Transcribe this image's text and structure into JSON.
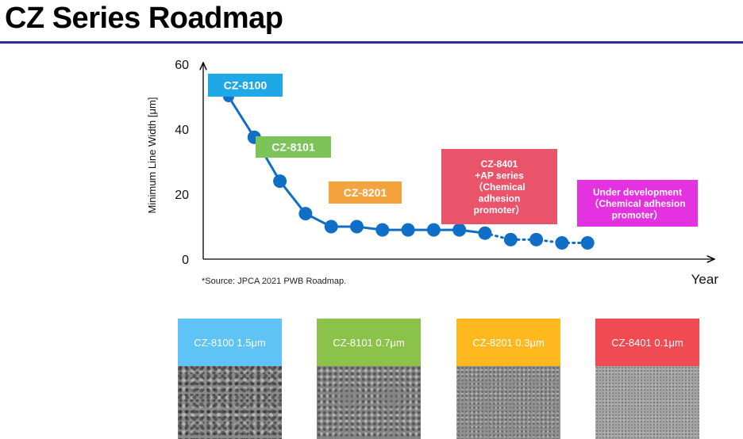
{
  "page_title": "CZ Series Roadmap",
  "chart_data": {
    "type": "line",
    "ylabel": "Minimum Line Width [μm]",
    "xlabel": "Year",
    "ylim": [
      0,
      60
    ],
    "yticks": [
      0,
      20,
      40,
      60
    ],
    "grid": false,
    "series": [
      {
        "style": "solid",
        "values": [
          50,
          37.5,
          24,
          14,
          10,
          10,
          9,
          9,
          9,
          9,
          8
        ]
      },
      {
        "style": "dotted",
        "values": [
          8,
          6,
          6,
          5,
          5
        ]
      }
    ],
    "annotations": [
      {
        "text": "CZ-8100",
        "color": "#1fa8e6"
      },
      {
        "text": "CZ-8101",
        "color": "#7cc35a"
      },
      {
        "text": "CZ-8201",
        "color": "#f5a33d"
      },
      {
        "lines": [
          "CZ-8401",
          "+AP series",
          "（Chemical",
          "adhesion",
          "promoter）"
        ],
        "color": "#e9546b"
      },
      {
        "lines": [
          "Under development",
          "（Chemical adhesion",
          "promoter）"
        ],
        "color": "#e532e1"
      }
    ],
    "source": "*Source: JPCA 2021 PWB Roadmap."
  },
  "samples": [
    {
      "label": "CZ-8100 1.5μm",
      "color": "#5fc4f5"
    },
    {
      "label": "CZ-8101 0.7μm",
      "color": "#8bc34a"
    },
    {
      "label": "CZ-8201 0.3μm",
      "color": "#ffb81e"
    },
    {
      "label": "CZ-8401 0.1μm",
      "color": "#f04a52"
    }
  ]
}
